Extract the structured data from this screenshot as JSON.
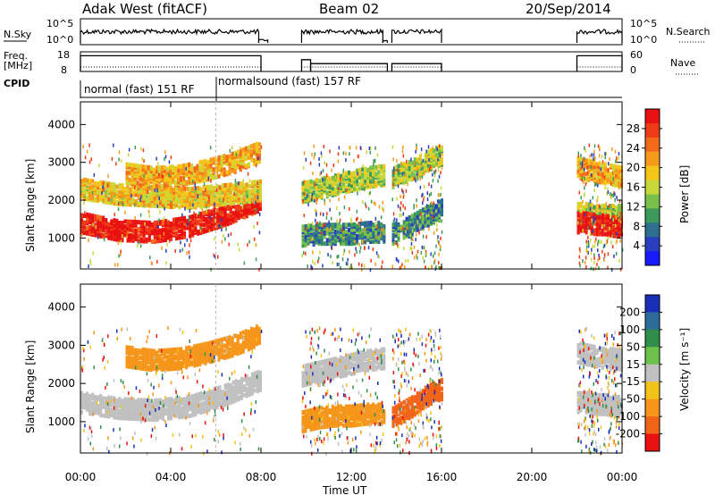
{
  "header": {
    "station": "Adak West (fitACF)",
    "beam": "Beam 02",
    "date": "20/Sep/2014"
  },
  "noise_panel": {
    "left_label": "N.Sky",
    "right_label": "N.Search",
    "left_ticks": [
      "10^5",
      "10^0"
    ],
    "right_ticks": [
      "10^5",
      "10^0"
    ]
  },
  "freq_panel": {
    "left_label_line1": "Freq.",
    "left_label_line2": "[MHz]",
    "right_label": "Nave",
    "left_ticks": [
      "18",
      "8"
    ],
    "right_ticks": [
      "60",
      "0"
    ]
  },
  "cpid_panel": {
    "label": "CPID",
    "segments": [
      {
        "name": "normal (fast) 151 RF",
        "start_hour": 0,
        "end_hour": 6
      },
      {
        "name": "normalsound (fast) 157 RF",
        "start_hour": 6,
        "end_hour": 24
      }
    ]
  },
  "power_panel": {
    "ylabel": "Slant Range [km]",
    "yticks": [
      "4000",
      "3000",
      "2000",
      "1000"
    ],
    "colorbar_label": "Power [dB]",
    "colorbar_ticks": [
      "28",
      "24",
      "20",
      "16",
      "12",
      "8",
      "4"
    ],
    "colors": [
      "#1a1aff",
      "#2a3fbf",
      "#2e6e8e",
      "#3c9a5a",
      "#79c04a",
      "#c8d83a",
      "#f5c518",
      "#f59a1a",
      "#f26a1a",
      "#ee3a17",
      "#e81010"
    ]
  },
  "velocity_panel": {
    "ylabel": "Slant Range [km]",
    "yticks": [
      "4000",
      "3000",
      "2000",
      "1000"
    ],
    "colorbar_label": "Velocity [m s⁻¹]",
    "colorbar_ticks": [
      "200",
      "100",
      "50",
      "15",
      "-15",
      "-50",
      "-100",
      "-200"
    ],
    "colors": [
      "#1a2fb8",
      "#2d6b98",
      "#2f8f4a",
      "#6cc24a",
      "#c0c0c0",
      "#f3c31a",
      "#f5961a",
      "#f26418",
      "#e81010"
    ]
  },
  "xaxis": {
    "label": "Time UT",
    "ticks": [
      "00:00",
      "04:00",
      "08:00",
      "12:00",
      "16:00",
      "20:00",
      "00:00"
    ]
  },
  "chart_data": [
    {
      "type": "line",
      "title": "",
      "ylabel": "N.Sky / N.Search",
      "series": [
        {
          "name": "N.Sky",
          "segments": [
            {
              "x": [
                0,
                7.9
              ],
              "y_level": "high"
            },
            {
              "x": [
                7.9,
                8.3
              ],
              "y_level": "low"
            },
            {
              "x": [
                9.8,
                13.4
              ],
              "y_level": "high"
            },
            {
              "x": [
                13.4,
                13.6
              ],
              "y_level": "low"
            },
            {
              "x": [
                13.8,
                16.0
              ],
              "y_level": "high"
            },
            {
              "x": [
                22.0,
                24.0
              ],
              "y_level": "high"
            }
          ]
        }
      ]
    },
    {
      "type": "line",
      "title": "",
      "ylabel": "Freq. [MHz]",
      "ylim": [
        8,
        18
      ],
      "series": [
        {
          "name": "Freq.",
          "segments": [
            {
              "x": [
                0,
                8.0
              ],
              "y": 16
            },
            {
              "x": [
                9.8,
                10.2
              ],
              "y": 14
            },
            {
              "x": [
                10.2,
                13.6
              ],
              "y": 12
            },
            {
              "x": [
                13.8,
                16.0
              ],
              "y": 12
            },
            {
              "x": [
                22.0,
                24.0
              ],
              "y": 16
            }
          ]
        },
        {
          "name": "Nave",
          "segments": [
            {
              "x": [
                0,
                8.0
              ],
              "y": 12
            },
            {
              "x": [
                9.8,
                13.6
              ],
              "y": 12
            },
            {
              "x": [
                13.8,
                16.0
              ],
              "y": 12
            },
            {
              "x": [
                22.0,
                24.0
              ],
              "y": 12
            }
          ]
        }
      ]
    },
    {
      "type": "heatmap",
      "title": "",
      "ylabel": "Slant Range [km]",
      "xlabel": "Time UT",
      "colorbar": "Power [dB]",
      "clim": [
        0,
        30
      ],
      "ylim": [
        180,
        4600
      ],
      "xlim": [
        0,
        24
      ],
      "bands": [
        {
          "t": [
            0.0,
            8.0
          ],
          "r_center": [
            1400,
            1200,
            1150,
            1300,
            1600,
            2000
          ],
          "value": 30
        },
        {
          "t": [
            0.0,
            8.0
          ],
          "r_center": [
            2300,
            2150,
            2100,
            2050,
            2150,
            2250
          ],
          "value": 18
        },
        {
          "t": [
            2.0,
            8.0
          ],
          "r_center": [
            2700,
            2600,
            2650,
            2800,
            3000,
            3300
          ],
          "value": 20
        },
        {
          "t": [
            9.8,
            13.4
          ],
          "r_center": [
            2200,
            2300,
            2400,
            2500,
            2600,
            2650
          ],
          "value": 14
        },
        {
          "t": [
            9.8,
            13.4
          ],
          "r_center": [
            1050,
            1100,
            1100,
            1100,
            1150,
            1150
          ],
          "value": 8
        },
        {
          "t": [
            13.8,
            16.0
          ],
          "r_center": [
            2600,
            2700,
            2800,
            2950,
            3100,
            3200
          ],
          "value": 14
        },
        {
          "t": [
            13.8,
            16.0
          ],
          "r_center": [
            1100,
            1200,
            1350,
            1500,
            1650,
            1750
          ],
          "value": 8
        },
        {
          "t": [
            22.0,
            24.0
          ],
          "r_center": [
            2850,
            2800,
            2750,
            2700,
            2650,
            2600
          ],
          "value": 20
        },
        {
          "t": [
            22.0,
            24.0
          ],
          "r_center": [
            1650,
            1650,
            1600,
            1600,
            1600,
            1600
          ],
          "value": 14
        },
        {
          "t": [
            22.0,
            24.0
          ],
          "r_center": [
            1400,
            1400,
            1350,
            1350,
            1300,
            1300
          ],
          "value": 30
        }
      ]
    },
    {
      "type": "heatmap",
      "title": "",
      "ylabel": "Slant Range [km]",
      "xlabel": "Time UT",
      "colorbar": "Velocity [m s⁻¹]",
      "clim": [
        -250,
        250
      ],
      "ylim": [
        180,
        4600
      ],
      "xlim": [
        0,
        24
      ],
      "bands": [
        {
          "t": [
            0.0,
            8.0
          ],
          "r_center": [
            1500,
            1350,
            1300,
            1400,
            1700,
            2100
          ],
          "value": 0
        },
        {
          "t": [
            2.0,
            8.0
          ],
          "r_center": [
            2700,
            2600,
            2650,
            2800,
            3000,
            3300
          ],
          "value": -40
        },
        {
          "t": [
            9.8,
            13.4
          ],
          "r_center": [
            2200,
            2300,
            2400,
            2500,
            2600,
            2650
          ],
          "value": 0
        },
        {
          "t": [
            9.8,
            13.4
          ],
          "r_center": [
            1000,
            1100,
            1150,
            1150,
            1200,
            1200
          ],
          "value": -60
        },
        {
          "t": [
            13.8,
            16.0
          ],
          "r_center": [
            1100,
            1250,
            1400,
            1600,
            1750,
            1850
          ],
          "value": -120
        },
        {
          "t": [
            22.0,
            24.0
          ],
          "r_center": [
            2800,
            2750,
            2700,
            2650,
            2650,
            2600
          ],
          "value": 0
        },
        {
          "t": [
            22.0,
            24.0
          ],
          "r_center": [
            1500,
            1500,
            1450,
            1450,
            1400,
            1400
          ],
          "value": 0
        }
      ]
    }
  ]
}
